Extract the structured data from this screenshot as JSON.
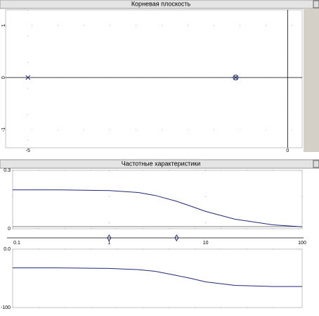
{
  "windows": [
    {
      "title": "Корневая плоскость"
    },
    {
      "title": "Частотные характеристики"
    }
  ],
  "chart_data": [
    {
      "type": "scatter",
      "xlim": [
        -5.43,
        0.28
      ],
      "ylim": [
        -1.35,
        1.3
      ],
      "xticks": [
        -5,
        0
      ],
      "yticks": [
        -1,
        0,
        1
      ],
      "series": [
        {
          "marker": "x",
          "color": "#1e2a78",
          "x": [
            -5
          ],
          "values": [
            0
          ]
        },
        {
          "marker": "circle-x",
          "color": "#1e2a78",
          "x": [
            -1
          ],
          "values": [
            0
          ]
        }
      ]
    },
    {
      "type": "line",
      "log_x": true,
      "xlim": [
        0.1,
        100
      ],
      "xticks": [
        0.1,
        1,
        10,
        100
      ],
      "ylim": [
        0,
        0.3
      ],
      "yticks": [
        0,
        0.3
      ],
      "x_markers": [
        1,
        5
      ],
      "x": [
        0.1,
        0.3,
        1,
        2,
        3,
        5,
        7,
        10,
        20,
        50,
        100
      ],
      "series": [
        {
          "color": "#1e2a78",
          "values": [
            0.2,
            0.2,
            0.196,
            0.186,
            0.171,
            0.141,
            0.116,
            0.089,
            0.049,
            0.02,
            0.01
          ]
        }
      ]
    },
    {
      "type": "line",
      "log_x": true,
      "xlim": [
        0.1,
        100
      ],
      "ylim": [
        -100,
        0
      ],
      "yticks": [
        {
          "value": 0,
          "label": "0.0"
        },
        -100
      ],
      "x": [
        0.1,
        0.3,
        1,
        2,
        3,
        5,
        7,
        10,
        20,
        50,
        100
      ],
      "series": [
        {
          "color": "#1e2a78",
          "values": [
            -32,
            -32,
            -33,
            -35,
            -38,
            -45,
            -50,
            -56,
            -62,
            -64,
            -64
          ]
        }
      ]
    }
  ]
}
